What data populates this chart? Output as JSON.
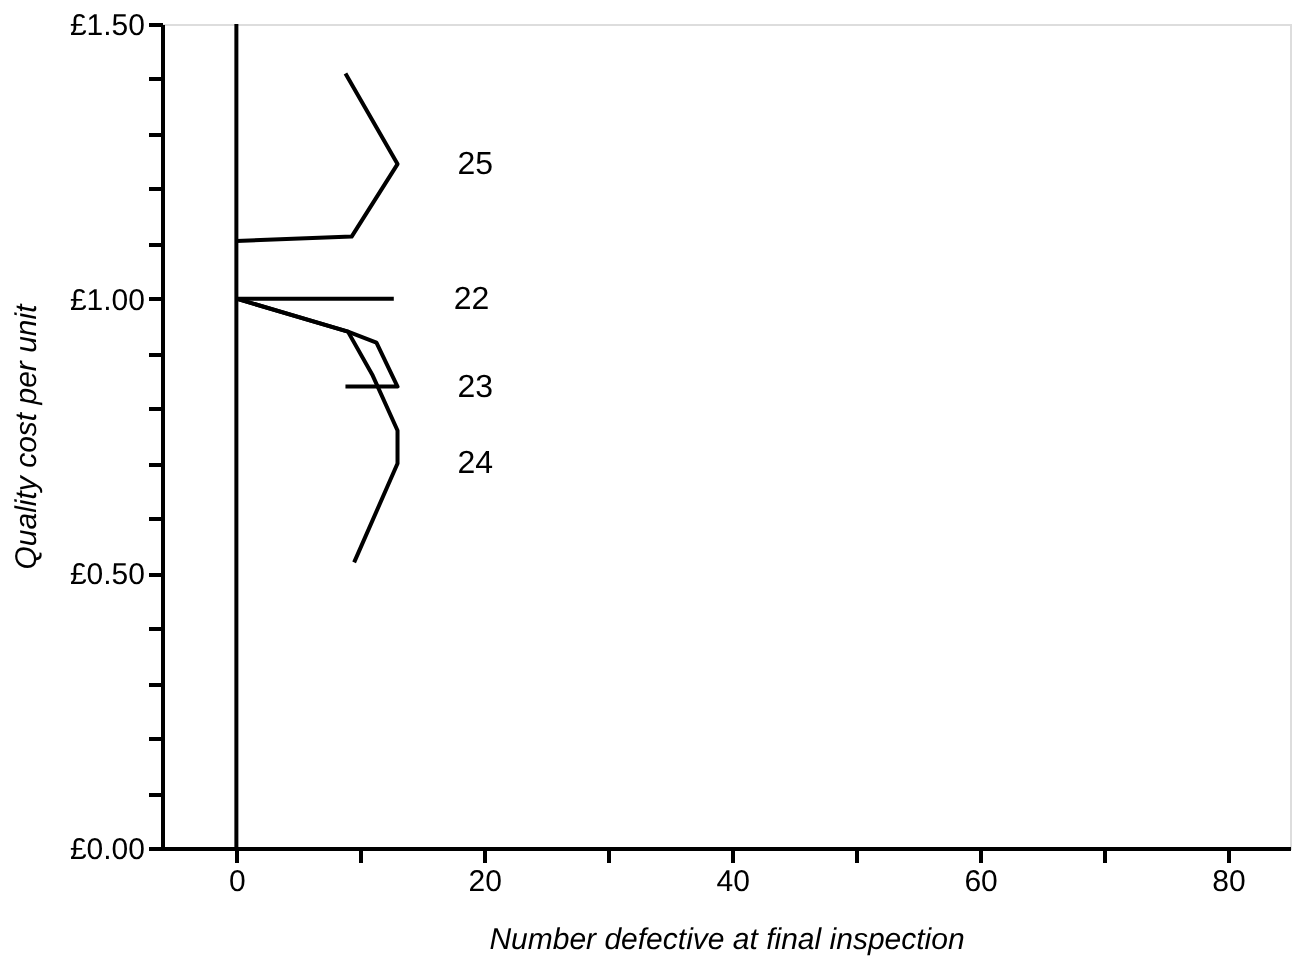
{
  "chart_data": {
    "type": "line",
    "xlabel": "Number defective at final inspection",
    "ylabel": "Quality cost per unit",
    "xlim": [
      -6,
      85
    ],
    "ylim": [
      0,
      1.5
    ],
    "xticks": [
      0,
      {
        "value": 10,
        "label": null
      },
      20,
      {
        "value": 30,
        "label": null
      },
      40,
      {
        "value": 50,
        "label": null
      },
      60,
      {
        "value": 70,
        "label": null
      },
      80
    ],
    "yticks": [
      {
        "value": 0,
        "label": "£0.00"
      },
      {
        "value": 0.1,
        "label": null
      },
      {
        "value": 0.2,
        "label": null
      },
      {
        "value": 0.3,
        "label": null
      },
      {
        "value": 0.4,
        "label": null
      },
      {
        "value": 0.5,
        "label": "£0.50"
      },
      {
        "value": 0.6,
        "label": null
      },
      {
        "value": 0.7,
        "label": null
      },
      {
        "value": 0.8,
        "label": null
      },
      {
        "value": 0.9,
        "label": null
      },
      {
        "value": 1.0,
        "label": "£1.00"
      },
      {
        "value": 1.1,
        "label": null
      },
      {
        "value": 1.2,
        "label": null
      },
      {
        "value": 1.3,
        "label": null
      },
      {
        "value": 1.4,
        "label": null
      },
      {
        "value": 1.5,
        "label": "£1.50"
      }
    ],
    "grid": false,
    "marker": "none",
    "line_style": "solid",
    "ref_lines": [
      {
        "axis": "x",
        "value": 0,
        "color": "#000000"
      }
    ],
    "series": [
      {
        "name": "25",
        "color": "#000000",
        "x": [
          8.8,
          13.0,
          9.3,
          0
        ],
        "values": [
          1.41,
          1.245,
          1.113,
          1.105
        ]
      },
      {
        "name": "22",
        "color": "#000000",
        "x": [
          0,
          12.7
        ],
        "values": [
          1.0,
          1.0
        ]
      },
      {
        "name": "23",
        "color": "#000000",
        "x": [
          0,
          9.0,
          11.3,
          13.0,
          8.8
        ],
        "values": [
          1.0,
          0.94,
          0.92,
          0.84,
          0.84
        ]
      },
      {
        "name": "24",
        "color": "#000000",
        "x": [
          0,
          9.0,
          11.0,
          13.0,
          13.0,
          9.5
        ],
        "values": [
          1.0,
          0.94,
          0.86,
          0.76,
          0.7,
          0.52
        ]
      }
    ]
  }
}
